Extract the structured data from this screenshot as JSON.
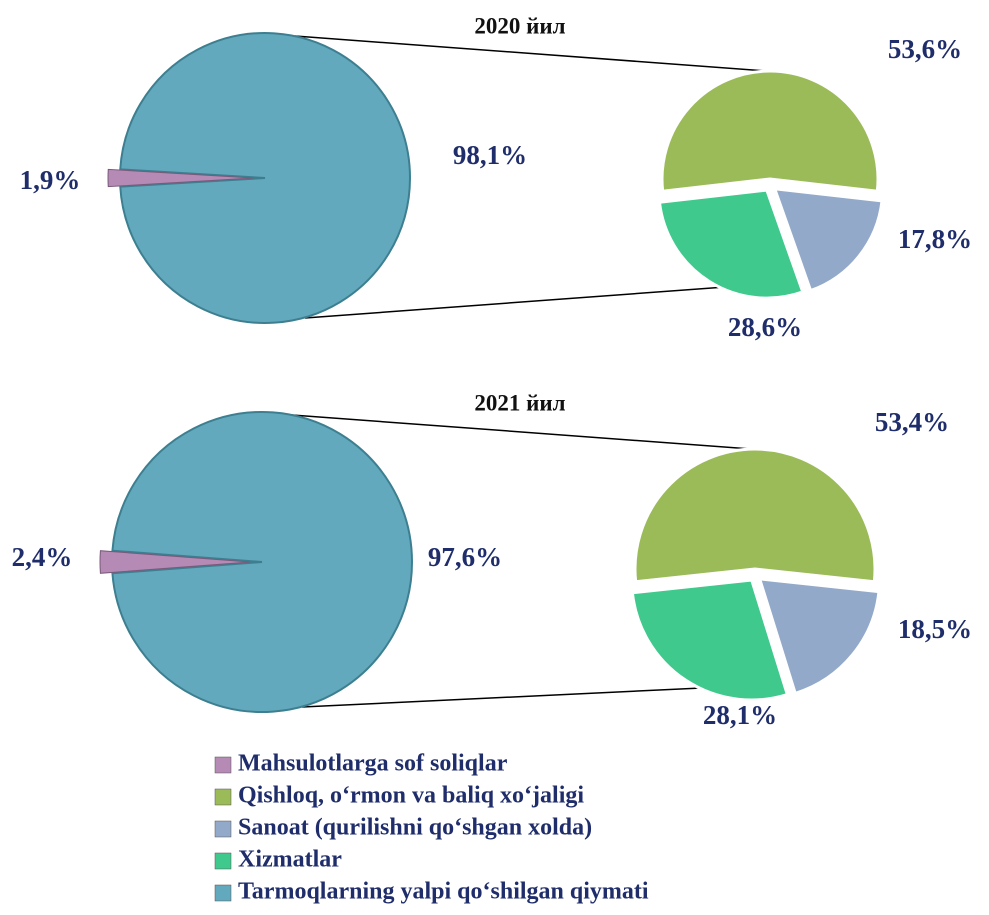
{
  "chart_data": {
    "type": "pie-of-pie",
    "categories": [
      "Mahsulotlarga sof soliqlar",
      "Qishloq, o‘rmon va baliq xo‘jaligi",
      "Sanoat (qurilishni qo‘shgan xolda)",
      "Xizmatlar",
      "Tarmoqlarning yalpi qo‘shilgan qiymati"
    ],
    "colors": [
      "#b58ab5",
      "#9bbb59",
      "#93a9c9",
      "#3fc98c",
      "#62a9bd"
    ],
    "charts": [
      {
        "title": "2020 йил",
        "values": [
          1.9,
          98.1
        ],
        "value_labels": [
          "1,9%",
          "98,1%"
        ],
        "secondary_values": [
          53.6,
          17.8,
          28.6
        ],
        "secondary_value_labels": [
          "53,6%",
          "17,8%",
          "28,6%"
        ]
      },
      {
        "title": "2021 йил",
        "values": [
          2.4,
          97.6
        ],
        "value_labels": [
          "2,4%",
          "97,6%"
        ],
        "secondary_values": [
          53.4,
          18.5,
          28.1
        ],
        "secondary_value_labels": [
          "53,4%",
          "18,5%",
          "28,1%"
        ]
      }
    ]
  }
}
